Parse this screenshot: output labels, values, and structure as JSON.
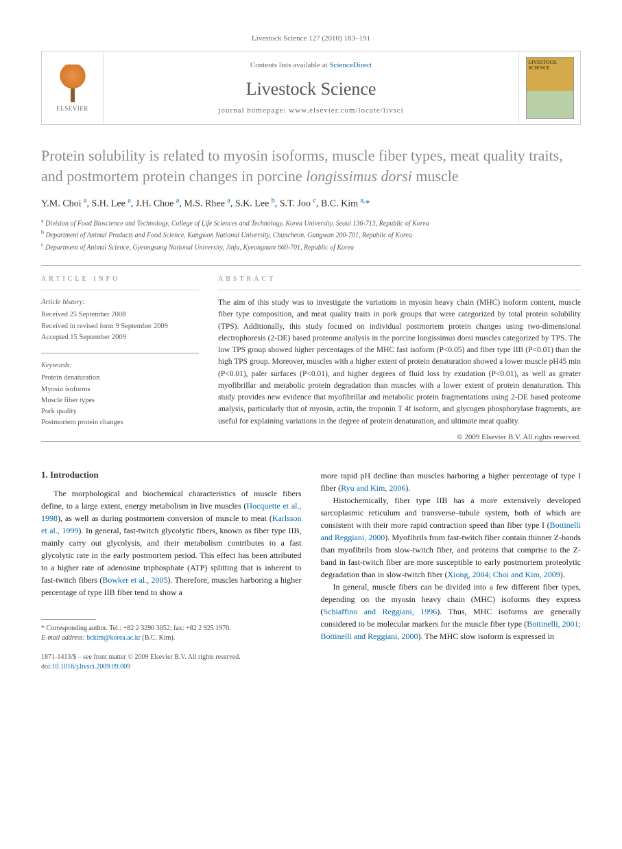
{
  "running_header": "Livestock Science 127 (2010) 183–191",
  "banner": {
    "contents_prefix": "Contents lists available at ",
    "sciencedirect": "ScienceDirect",
    "journal_name": "Livestock Science",
    "homepage_prefix": "journal homepage: ",
    "homepage_url": "www.elsevier.com/locate/livsci",
    "elsevier_label": "ELSEVIER",
    "cover_label": "LIVESTOCK SCIENCE"
  },
  "title_part1": "Protein solubility is related to myosin isoforms, muscle fiber types, meat quality traits, and postmortem protein changes in porcine ",
  "title_italic": "longissimus dorsi",
  "title_part2": " muscle",
  "authors_html": "Y.M. Choi <sup>a</sup>, S.H. Lee <sup>a</sup>, J.H. Choe <sup>a</sup>, M.S. Rhee <sup>a</sup>, S.K. Lee <sup>b</sup>, S.T. Joo <sup>c</sup>, B.C. Kim <sup>a,</sup><span class=\"corr\">*</span>",
  "affiliations": {
    "a": "Division of Food Bioscience and Technology, College of Life Sciences and Technology, Korea University, Seoul 136-713, Republic of Korea",
    "b": "Department of Animal Products and Food Science, Kangwon National University, Chuncheon, Gangwon 200-701, Republic of Korea",
    "c": "Department of Animal Science, Gyeongsang National University, Jinju, Kyeongnam 660-701, Republic of Korea"
  },
  "info_label": "article info",
  "abstract_label": "abstract",
  "history": {
    "heading": "Article history:",
    "received": "Received 25 September 2008",
    "revised": "Received in revised form 9 September 2009",
    "accepted": "Accepted 15 September 2009"
  },
  "keywords": {
    "heading": "Keywords:",
    "items": [
      "Protein denaturation",
      "Myosin isoforms",
      "Muscle fiber types",
      "Pork quality",
      "Postmortem protein changes"
    ]
  },
  "abstract": "The aim of this study was to investigate the variations in myosin heavy chain (MHC) isoform content, muscle fiber type composition, and meat quality traits in pork groups that were categorized by total protein solubility (TPS). Additionally, this study focused on individual postmortem protein changes using two-dimensional electrophoresis (2-DE) based proteome analysis in the porcine longissimus dorsi muscles categorized by TPS. The low TPS group showed higher percentages of the MHC fast isoform (P<0.05) and fiber type IIB (P<0.01) than the high TPS group. Moreover, muscles with a higher extent of protein denaturation showed a lower muscle pH45 min (P<0.01), paler surfaces (P<0.01), and higher degrees of fluid loss by exudation (P<0.01), as well as greater myofibrillar and metabolic protein degradation than muscles with a lower extent of protein denaturation. This study provides new evidence that myofibrillar and metabolic protein fragmentations using 2-DE based proteome analysis, particularly that of myosin, actin, the troponin T 4f isoform, and glycogen phosphorylase fragments, are useful for explaining variations in the degree of protein denaturation, and ultimate meat quality.",
  "copyright": "© 2009 Elsevier B.V. All rights reserved.",
  "intro_heading": "1. Introduction",
  "col1_p1_pre": "The morphological and biochemical characteristics of muscle fibers define, to a large extent, energy metabolism in live muscles (",
  "col1_p1_link1": "Hocquette et al., 1998",
  "col1_p1_mid1": "), as well as during postmortem conversion of muscle to meat (",
  "col1_p1_link2": "Karlsson et al., 1999",
  "col1_p1_mid2": "). In general, fast-twitch glycolytic fibers, known as fiber type IIB, mainly carry out glycolysis, and their metabolism contributes to a fast glycolytic rate in the early postmortem period. This effect has been attributed to a higher rate of adenosine triphosphate (ATP) splitting that is inherent to fast-twitch fibers (",
  "col1_p1_link3": "Bowker et al., 2005",
  "col1_p1_post": "). Therefore, muscles harboring a higher percentage of type IIB fiber tend to show a",
  "col2_p1_pre": "more rapid pH decline than muscles harboring a higher percentage of type I fiber (",
  "col2_p1_link1": "Ryu and Kim, 2006",
  "col2_p1_post": ").",
  "col2_p2_pre": "Histochemically, fiber type IIB has a more extensively developed sarcoplasmic reticulum and transverse–tubule system, both of which are consistent with their more rapid contraction speed than fiber type I (",
  "col2_p2_link1": "Bottinelli and Reggiani, 2000",
  "col2_p2_mid1": "). Myofibrils from fast-twitch fiber contain thinner Z-bands than myofibrils from slow-twitch fiber, and proteins that comprise to the Z-band in fast-twitch fiber are more susceptible to early postmortem proteolytic degradation than in slow-twitch fiber (",
  "col2_p2_link2": "Xiong, 2004; Choi and Kim, 2009",
  "col2_p2_post": ").",
  "col2_p3_pre": "In general, muscle fibers can be divided into a few different fiber types, depending on the myosin heavy chain (MHC) isoforms they express (",
  "col2_p3_link1": "Schiaffino and Reggiani, 1996",
  "col2_p3_mid1": "). Thus, MHC isoforms are generally considered to be molecular markers for the muscle fiber type (",
  "col2_p3_link2": "Bottinelli, 2001; Bottinelli and Reggiani, 2000",
  "col2_p3_post": "). The MHC slow isoform is expressed in",
  "footnote": {
    "corr_label": "* Corresponding author. Tel.: +82 2 3290 3052; fax: +82 2 925 1970.",
    "email_label": "E-mail address:",
    "email": "bckim@korea.ac.kr",
    "email_person": "(B.C. Kim)."
  },
  "bottom": {
    "line1": "1871-1413/$ – see front matter © 2009 Elsevier B.V. All rights reserved.",
    "doi_label": "doi:",
    "doi": "10.1016/j.livsci.2009.09.009"
  },
  "colors": {
    "link": "#0066aa",
    "title_gray": "#8a8a8a",
    "text": "#333333",
    "muted": "#666666",
    "rule": "#999999"
  }
}
